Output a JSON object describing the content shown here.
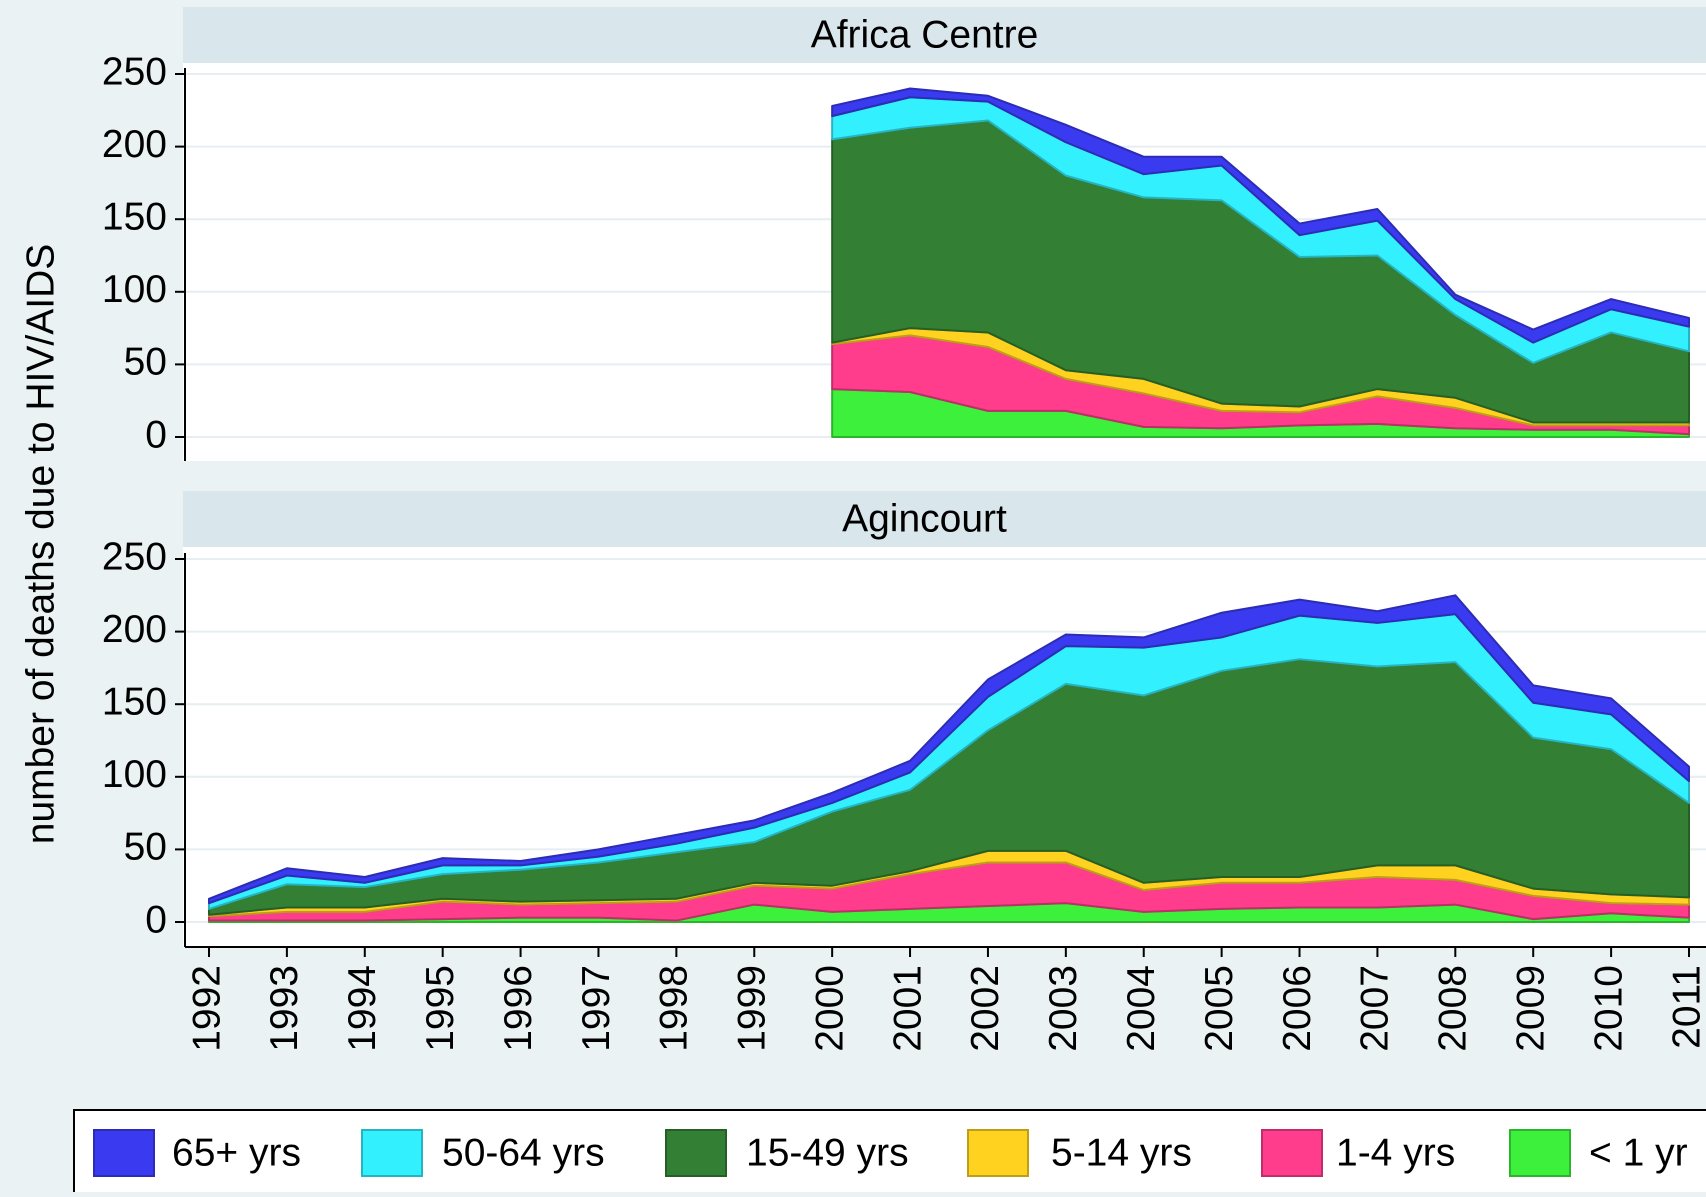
{
  "chart_data": [
    {
      "type": "stacked-area",
      "title": "Africa Centre",
      "ylabel": "number of deaths due to HIV/AIDS",
      "x": [
        1992,
        1993,
        1994,
        1995,
        1996,
        1997,
        1998,
        1999,
        2000,
        2001,
        2002,
        2003,
        2004,
        2005,
        2006,
        2007,
        2008,
        2009,
        2010,
        2011
      ],
      "xlim": [
        1992,
        2011
      ],
      "ylim": [
        0,
        250
      ],
      "yticks": [
        0,
        50,
        100,
        150,
        200,
        250
      ],
      "grid": true,
      "series": [
        {
          "name": "< 1 yr",
          "color": "#3cf03c",
          "values": [
            null,
            null,
            null,
            null,
            null,
            null,
            null,
            null,
            33,
            31,
            18,
            18,
            7,
            6,
            8,
            9,
            6,
            5,
            5,
            2
          ]
        },
        {
          "name": "1-4 yrs",
          "color": "#ff3d8c",
          "values": [
            null,
            null,
            null,
            null,
            null,
            null,
            null,
            null,
            31,
            39,
            44,
            22,
            23,
            12,
            9,
            19,
            14,
            3,
            3,
            6
          ]
        },
        {
          "name": "5-14 yrs",
          "color": "#ffd21f",
          "values": [
            null,
            null,
            null,
            null,
            null,
            null,
            null,
            null,
            1,
            5,
            10,
            6,
            10,
            5,
            4,
            5,
            7,
            2,
            2,
            2
          ]
        },
        {
          "name": "15-49 yrs",
          "color": "#337f33",
          "values": [
            null,
            null,
            null,
            null,
            null,
            null,
            null,
            null,
            140,
            138,
            146,
            134,
            125,
            140,
            103,
            92,
            57,
            41,
            62,
            49
          ]
        },
        {
          "name": "50-64 yrs",
          "color": "#33f0ff",
          "values": [
            null,
            null,
            null,
            null,
            null,
            null,
            null,
            null,
            16,
            21,
            13,
            23,
            16,
            24,
            15,
            24,
            11,
            14,
            16,
            17
          ]
        },
        {
          "name": "65+ yrs",
          "color": "#3a3af0",
          "values": [
            null,
            null,
            null,
            null,
            null,
            null,
            null,
            null,
            7,
            6,
            4,
            12,
            12,
            6,
            8,
            8,
            3,
            9,
            7,
            6
          ]
        }
      ]
    },
    {
      "type": "stacked-area",
      "title": "Agincourt",
      "x": [
        1992,
        1993,
        1994,
        1995,
        1996,
        1997,
        1998,
        1999,
        2000,
        2001,
        2002,
        2003,
        2004,
        2005,
        2006,
        2007,
        2008,
        2009,
        2010,
        2011
      ],
      "xlim": [
        1992,
        2011
      ],
      "xticks": [
        1992,
        1993,
        1994,
        1995,
        1996,
        1997,
        1998,
        1999,
        2000,
        2001,
        2002,
        2003,
        2004,
        2005,
        2006,
        2007,
        2008,
        2009,
        2010,
        2011
      ],
      "ylim": [
        0,
        250
      ],
      "yticks": [
        0,
        50,
        100,
        150,
        200,
        250
      ],
      "grid": true,
      "series": [
        {
          "name": "< 1 yr",
          "color": "#3cf03c",
          "values": [
            1,
            1,
            1,
            2,
            3,
            3,
            1,
            12,
            7,
            9,
            11,
            13,
            7,
            9,
            10,
            10,
            12,
            2,
            6,
            3
          ]
        },
        {
          "name": "1-4 yrs",
          "color": "#ff3d8c",
          "values": [
            3,
            6,
            6,
            12,
            9,
            10,
            13,
            13,
            16,
            24,
            30,
            28,
            15,
            18,
            17,
            21,
            17,
            16,
            7,
            9
          ]
        },
        {
          "name": "5-14 yrs",
          "color": "#ffd21f",
          "values": [
            1,
            3,
            3,
            2,
            2,
            2,
            2,
            2,
            2,
            2,
            8,
            8,
            5,
            4,
            4,
            8,
            10,
            5,
            6,
            5
          ]
        },
        {
          "name": "15-49 yrs",
          "color": "#337f33",
          "values": [
            4,
            16,
            14,
            17,
            22,
            26,
            32,
            28,
            51,
            56,
            83,
            115,
            129,
            142,
            150,
            137,
            140,
            104,
            100,
            65
          ]
        },
        {
          "name": "50-64 yrs",
          "color": "#33f0ff",
          "values": [
            4,
            6,
            3,
            6,
            3,
            4,
            6,
            10,
            6,
            12,
            23,
            26,
            33,
            23,
            30,
            30,
            33,
            24,
            24,
            15
          ]
        },
        {
          "name": "65+ yrs",
          "color": "#3a3af0",
          "values": [
            3,
            5,
            4,
            5,
            3,
            5,
            6,
            5,
            7,
            8,
            12,
            8,
            7,
            17,
            11,
            8,
            13,
            12,
            11,
            10
          ]
        }
      ]
    }
  ]
}
